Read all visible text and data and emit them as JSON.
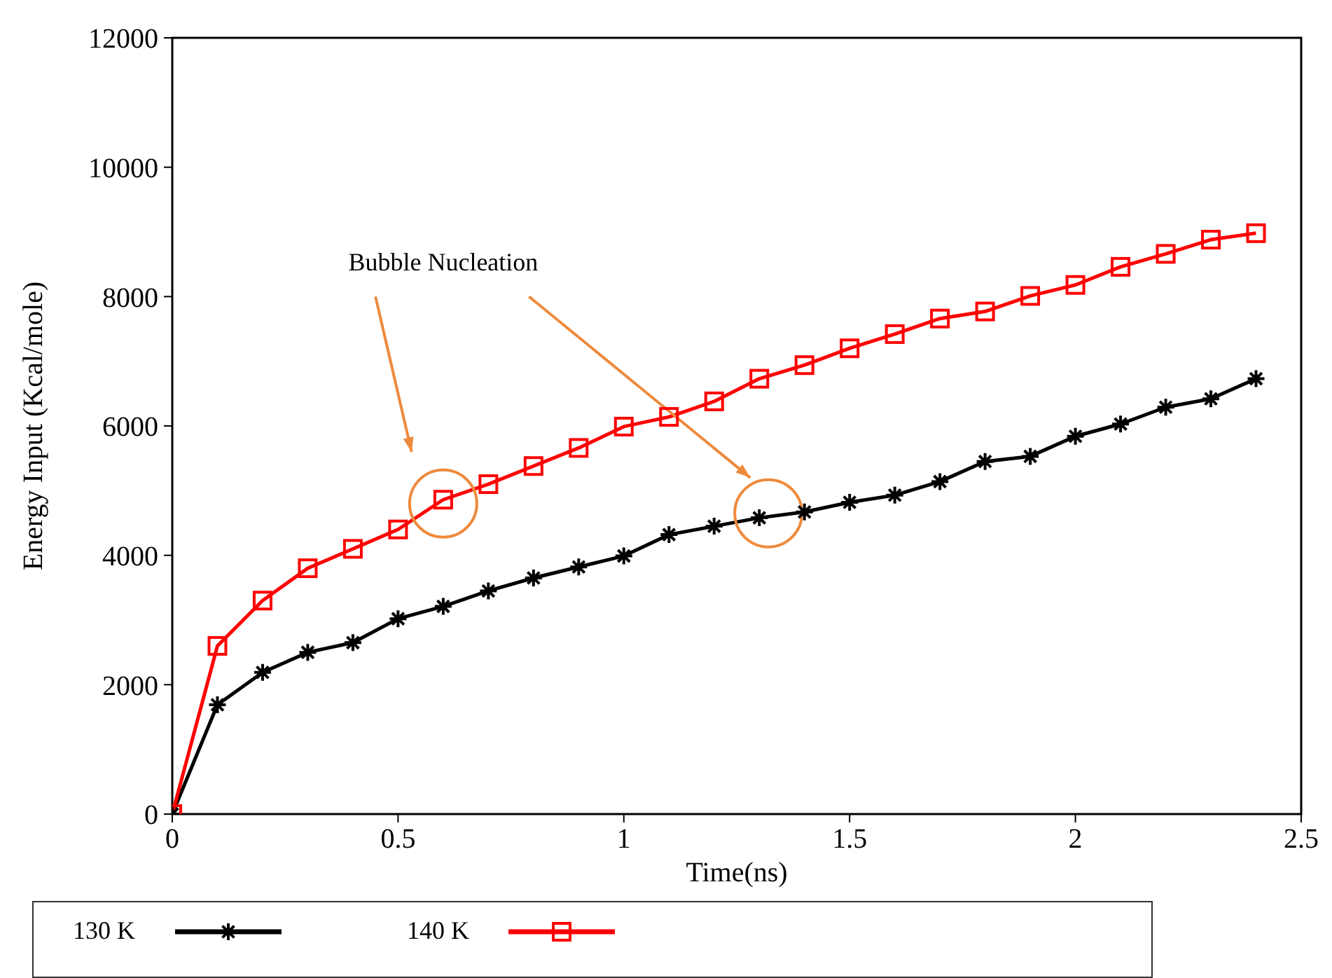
{
  "chart_data": {
    "type": "line",
    "xlabel": "Time(ns)",
    "ylabel": "Energy Input (Kcal/mole)",
    "annotations": [
      "Bubble Nucleation"
    ],
    "xlim": [
      0,
      2.5
    ],
    "xticks": [
      0,
      0.5,
      1,
      1.5,
      2,
      2.5
    ],
    "ylim": [
      0,
      12000
    ],
    "yticks": [
      0,
      2000,
      4000,
      6000,
      8000,
      10000,
      12000
    ],
    "grid": false,
    "legend": "bottom",
    "line_style": "solid",
    "series": [
      {
        "name": "130 K",
        "color": "#000000",
        "marker": "cross",
        "x": [
          0,
          0.1,
          0.2,
          0.3,
          0.4,
          0.5,
          0.6,
          0.7,
          0.8,
          0.9,
          1.0,
          1.1,
          1.2,
          1.3,
          1.4,
          1.5,
          1.6,
          1.7,
          1.8,
          1.9,
          2.0,
          2.1,
          2.2,
          2.3,
          2.4
        ],
        "values": [
          0,
          1690,
          2190,
          2500,
          2650,
          3020,
          3210,
          3450,
          3650,
          3820,
          3990,
          4320,
          4450,
          4580,
          4670,
          4820,
          4930,
          5140,
          5450,
          5530,
          5840,
          6030,
          6290,
          6420,
          6730
        ]
      },
      {
        "name": "140 K",
        "color": "#ff0000",
        "marker": "square",
        "x": [
          0,
          0.1,
          0.2,
          0.3,
          0.4,
          0.5,
          0.6,
          0.7,
          0.8,
          0.9,
          1.0,
          1.1,
          1.2,
          1.3,
          1.4,
          1.5,
          1.6,
          1.7,
          1.8,
          1.9,
          2.0,
          2.1,
          2.2,
          2.3,
          2.4
        ],
        "values": [
          0,
          2600,
          3300,
          3800,
          4100,
          4400,
          4860,
          5100,
          5380,
          5660,
          5990,
          6140,
          6380,
          6730,
          6940,
          7200,
          7420,
          7660,
          7770,
          8010,
          8180,
          8460,
          8660,
          8880,
          8980
        ]
      }
    ]
  }
}
